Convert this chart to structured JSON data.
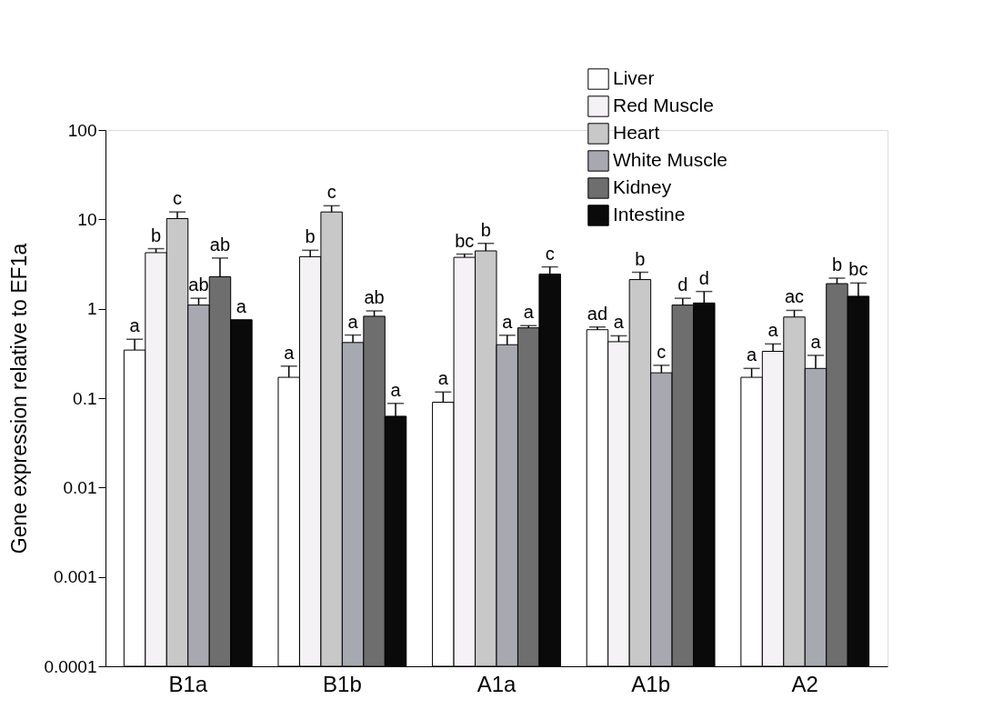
{
  "chart_data": {
    "type": "bar",
    "ylabel": "Gene expression relative to EF1a",
    "categories": [
      "B1a",
      "B1b",
      "A1a",
      "A1b",
      "A2"
    ],
    "log": "y",
    "ylim": [
      0.0001,
      100
    ],
    "yticks": [
      0.0001,
      0.001,
      0.01,
      0.1,
      1,
      10,
      100
    ],
    "grid": false,
    "legend": "top right",
    "series": [
      {
        "name": "Liver",
        "color": "#ffffff",
        "values": [
          0.345,
          0.171,
          0.09,
          0.583,
          0.171
        ],
        "errors": [
          [
            0.345,
            0.455
          ],
          [
            0.171,
            0.228
          ],
          [
            0.09,
            0.117
          ],
          [
            0.583,
            0.625
          ],
          [
            0.171,
            0.215
          ]
        ],
        "value_labels": [
          "a",
          "a",
          "a",
          "ad",
          "a"
        ]
      },
      {
        "name": "Red Muscle",
        "color": "#f4f2f4",
        "values": [
          4.24,
          3.82,
          3.76,
          0.428,
          0.334
        ],
        "errors": [
          [
            4.24,
            4.7
          ],
          [
            3.82,
            4.51
          ],
          [
            3.76,
            4.09
          ],
          [
            0.428,
            0.498
          ],
          [
            0.334,
            0.404
          ]
        ],
        "value_labels": [
          "b",
          "b",
          "bc",
          "a",
          "a"
        ]
      },
      {
        "name": "Heart",
        "color": "#c8c8c8",
        "values": [
          10.2,
          12.1,
          4.44,
          2.12,
          0.808
        ],
        "errors": [
          [
            10.2,
            12.1
          ],
          [
            12.1,
            14.2
          ],
          [
            4.44,
            5.39
          ],
          [
            2.12,
            2.56
          ],
          [
            0.808,
            0.959
          ]
        ],
        "value_labels": [
          "c",
          "c",
          "b",
          "b",
          "ac"
        ]
      },
      {
        "name": "White Muscle",
        "color": "#a8a8b0",
        "values": [
          1.1,
          0.419,
          0.396,
          0.192,
          0.215
        ],
        "errors": [
          [
            1.1,
            1.31
          ],
          [
            0.419,
            0.508
          ],
          [
            0.396,
            0.505
          ],
          [
            0.192,
            0.233
          ],
          [
            0.215,
            0.301
          ]
        ],
        "value_labels": [
          "ab",
          "a",
          "a",
          "c",
          "a"
        ]
      },
      {
        "name": "Kidney",
        "color": "#6e6e6e",
        "values": [
          2.28,
          0.824,
          0.612,
          1.1,
          1.91
        ],
        "errors": [
          [
            2.28,
            3.69
          ],
          [
            0.824,
            0.946
          ],
          [
            0.612,
            0.647
          ],
          [
            1.1,
            1.31
          ],
          [
            1.91,
            2.2
          ]
        ],
        "value_labels": [
          "ab",
          "ab",
          "a",
          "d",
          "b"
        ]
      },
      {
        "name": "Intestine",
        "color": "#0a0a0a",
        "values": [
          0.753,
          0.0627,
          2.44,
          1.16,
          1.38
        ],
        "errors": [
          null,
          [
            0.0627,
            0.0873
          ],
          [
            2.44,
            2.94
          ],
          [
            1.16,
            1.56
          ],
          [
            1.38,
            1.94
          ]
        ],
        "value_labels": [
          "a",
          "a",
          "c",
          "d",
          "bc"
        ]
      }
    ]
  }
}
